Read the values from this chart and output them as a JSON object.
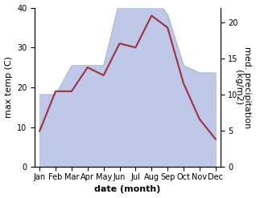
{
  "months": [
    "Jan",
    "Feb",
    "Mar",
    "Apr",
    "May",
    "Jun",
    "Jul",
    "Aug",
    "Sep",
    "Oct",
    "Nov",
    "Dec"
  ],
  "x_positions": [
    0,
    1,
    2,
    3,
    4,
    5,
    6,
    7,
    8,
    9,
    10,
    11
  ],
  "temperature": [
    9,
    19,
    19,
    25,
    23,
    31,
    30,
    38,
    35,
    21,
    12,
    7
  ],
  "precipitation": [
    10,
    10,
    14,
    14,
    14,
    23,
    24,
    24,
    21,
    14,
    13,
    13
  ],
  "temp_color": "#9b3a4a",
  "precip_fill_color": "#c0c8e8",
  "precip_edge_color": "#a0aacc",
  "ylabel_left": "max temp (C)",
  "ylabel_right": "med. precipitation\n(kg/m2)",
  "xlabel": "date (month)",
  "ylim_left": [
    0,
    40
  ],
  "ylim_right": [
    0,
    22
  ],
  "yticks_left": [
    0,
    10,
    20,
    30,
    40
  ],
  "yticks_right": [
    0,
    5,
    10,
    15,
    20
  ],
  "label_fontsize": 8,
  "tick_fontsize": 7,
  "line_width": 1.6
}
